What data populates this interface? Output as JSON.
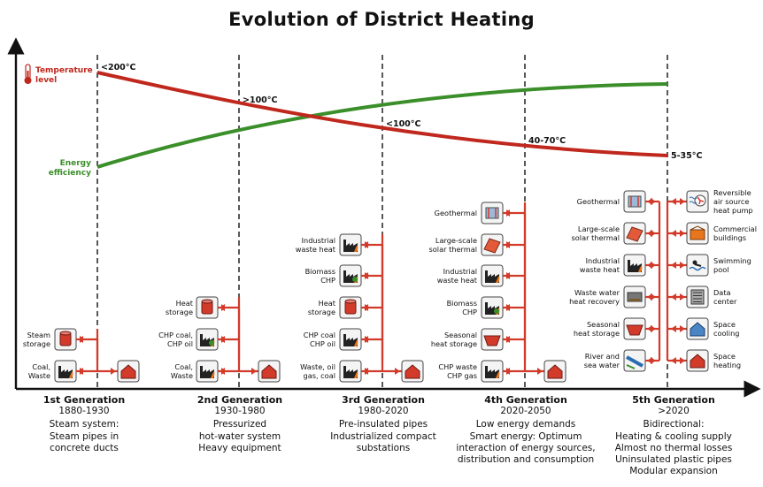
{
  "title": "Evolution of District Heating",
  "indicators": {
    "temperature_label": [
      "Temperature",
      "level"
    ],
    "efficiency_label": [
      "Energy",
      "efficiency"
    ],
    "temperatures": [
      "<200°C",
      ">100°C",
      "<100°C",
      "40-70°C",
      "5-35°C"
    ]
  },
  "colors": {
    "temperature": "#c0271d",
    "efficiency": "#3b8f2a",
    "pipe": "#d23a2a"
  },
  "generations": [
    {
      "name": "1st Generation",
      "years": "1880-1930",
      "desc": [
        "Steam system:",
        "Steam pipes in",
        "concrete ducts"
      ]
    },
    {
      "name": "2nd Generation",
      "years": "1930-1980",
      "desc": [
        "Pressurized",
        "hot-water system",
        "Heavy equipment"
      ]
    },
    {
      "name": "3rd Generation",
      "years": "1980-2020",
      "desc": [
        "Pre-insulated pipes",
        "Industrialized compact",
        "substations"
      ]
    },
    {
      "name": "4th Generation",
      "years": "2020-2050",
      "desc": [
        "Low energy demands",
        "Smart energy: Optimum",
        "interaction of energy sources,",
        "distribution and consumption"
      ]
    },
    {
      "name": "5th Generation",
      "years": ">2020",
      "desc": [
        "Bidirectional:",
        "Heating & cooling supply",
        "Almost no thermal losses",
        "Uninsulated plastic pipes",
        "Modular expansion"
      ]
    }
  ],
  "sources": {
    "g1": [
      [
        "Steam",
        "storage"
      ],
      [
        "Coal,",
        "Waste"
      ]
    ],
    "g2": [
      [
        "Heat",
        "storage"
      ],
      [
        "CHP coal,",
        "CHP oil"
      ],
      [
        "Coal,",
        "Waste"
      ]
    ],
    "g3": [
      [
        "Industrial",
        "waste heat"
      ],
      [
        "Biomass",
        "CHP"
      ],
      [
        "Heat",
        "storage"
      ],
      [
        "CHP coal",
        "CHP oil"
      ],
      [
        "Waste, oil",
        "gas, coal"
      ]
    ],
    "g4": [
      [
        "Geothermal"
      ],
      [
        "Large-scale",
        "solar thermal"
      ],
      [
        "Industrial",
        "waste heat"
      ],
      [
        "Biomass",
        "CHP"
      ],
      [
        "Seasonal",
        "heat storage"
      ],
      [
        "CHP waste",
        "CHP gas"
      ]
    ],
    "g5": [
      [
        "Geothermal"
      ],
      [
        "Large-scale",
        "solar thermal"
      ],
      [
        "Industrial",
        "waste heat"
      ],
      [
        "Waste water",
        "heat recovery"
      ],
      [
        "Seasonal",
        "heat storage"
      ],
      [
        "River and",
        "sea water"
      ]
    ]
  },
  "consumers": [
    [
      "Reversible",
      "air source",
      "heat pump"
    ],
    [
      "Commercial",
      "buildings"
    ],
    [
      "Swimming",
      "pool"
    ],
    [
      "Data",
      "center"
    ],
    [
      "Space",
      "cooling"
    ],
    [
      "Space",
      "heating"
    ]
  ]
}
